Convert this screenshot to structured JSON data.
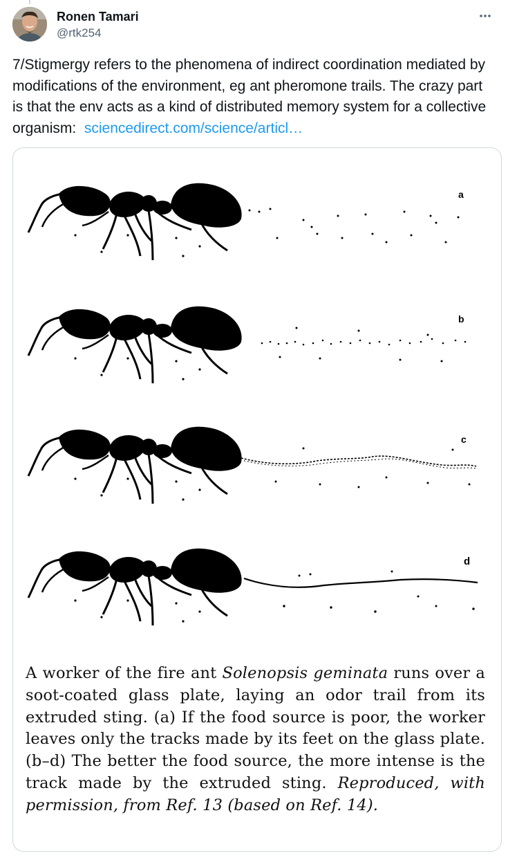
{
  "tweet": {
    "author": {
      "name": "Ronen Tamari",
      "handle": "@rtk254"
    },
    "more_icon": "more-horizontal-icon",
    "text": "7/Stigmergy refers to the phenomena of indirect coordination mediated by modifications of the environment, eg ant pheromone trails. The crazy part is that the env acts as a kind of distributed memory system for a collective organism:",
    "link": "sciencedirect.com/science/articl…"
  },
  "figure": {
    "panel_labels": [
      "a",
      "b",
      "c",
      "d"
    ],
    "caption": {
      "p1": "A worker of the fire ant ",
      "species": "Solenopsis geminata",
      "p2": " runs over a soot-coated glass plate, laying an odor trail from its extruded sting. (a) If the food source is poor, the worker leaves only the tracks made by its feet on the glass plate. (b–d) The better the food source, the more intense is the track made by the extruded sting. ",
      "credit": "Reproduced, with permission, from Ref. 13 (based on Ref. 14)."
    }
  }
}
